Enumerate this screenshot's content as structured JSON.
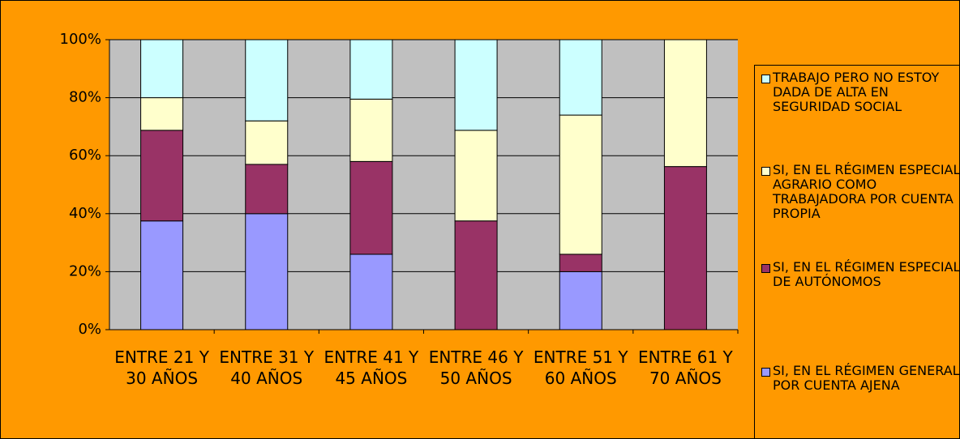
{
  "chart_data": {
    "type": "stacked_bar_100",
    "categories": [
      "ENTRE 21 Y 30 AÑOS",
      "ENTRE 31 Y 40 AÑOS",
      "ENTRE 41 Y 45 AÑOS",
      "ENTRE 46 Y 50 AÑOS",
      "ENTRE 51 Y 60 AÑOS",
      "ENTRE 61 Y 70 AÑOS"
    ],
    "series": [
      {
        "name": "SI, EN EL RÉGIMEN GENERAL POR CUENTA AJENA",
        "color": "#9999ff",
        "values": [
          37.5,
          40,
          26,
          0,
          20,
          0
        ]
      },
      {
        "name": "SI, EN EL RÉGIMEN ESPECIAL DE AUTÓNOMOS",
        "color": "#993366",
        "values": [
          31.25,
          17,
          32,
          37.5,
          6,
          56.25
        ]
      },
      {
        "name": "SI, EN EL RÉGIMEN ESPECIAL AGRARIO COMO TRABAJADORA POR CUENTA PROPIA",
        "color": "#ffffcc",
        "values": [
          11.25,
          15,
          21.5,
          31.25,
          48,
          43.75
        ]
      },
      {
        "name": "TRABAJO PERO NO ESTOY DADA DE ALTA EN SEGURIDAD SOCIAL",
        "color": "#ccffff",
        "values": [
          20,
          28,
          20.5,
          31.25,
          26,
          0
        ]
      }
    ],
    "ylim": [
      0,
      100
    ],
    "yticks": [
      {
        "value": 0,
        "label": "0%"
      },
      {
        "value": 20,
        "label": "20%"
      },
      {
        "value": 40,
        "label": "40%"
      },
      {
        "value": 60,
        "label": "60%"
      },
      {
        "value": 80,
        "label": "80%"
      },
      {
        "value": 100,
        "label": "100%"
      }
    ],
    "grid": true
  }
}
